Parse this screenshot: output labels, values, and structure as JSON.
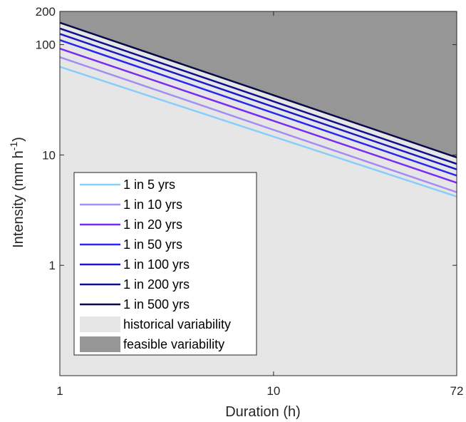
{
  "chart_data": {
    "type": "line",
    "xlabel": "Duration (h)",
    "ylabel_main": "Intensity (mm h",
    "ylabel_sup": "-1",
    "ylabel_close": ")",
    "x_scale": "log",
    "y_scale": "log",
    "xlim": [
      1,
      72
    ],
    "ylim": [
      0.1,
      200
    ],
    "x_ticks": [
      1,
      10,
      72
    ],
    "x_tick_labels": [
      "1",
      "10",
      "72"
    ],
    "y_ticks": [
      1,
      10,
      100,
      200
    ],
    "y_tick_labels": [
      "1",
      "10",
      "100",
      "200"
    ],
    "grid": false,
    "legend_position": "bottom-left",
    "series": [
      {
        "name": "1 in 5 yrs",
        "color": "#87cefa",
        "x": [
          1,
          72
        ],
        "y": [
          63,
          4.2
        ]
      },
      {
        "name": "1 in 10 yrs",
        "color": "#a58cf5",
        "x": [
          1,
          72
        ],
        "y": [
          77,
          4.6
        ]
      },
      {
        "name": "1 in 20 yrs",
        "color": "#7a2df2",
        "x": [
          1,
          72
        ],
        "y": [
          92,
          5.6
        ]
      },
      {
        "name": "1 in 50 yrs",
        "color": "#2a27f0",
        "x": [
          1,
          72
        ],
        "y": [
          110,
          6.5
        ]
      },
      {
        "name": "1 in 100 yrs",
        "color": "#1a1ac8",
        "x": [
          1,
          72
        ],
        "y": [
          125,
          7.4
        ]
      },
      {
        "name": "1 in 200 yrs",
        "color": "#10108c",
        "x": [
          1,
          72
        ],
        "y": [
          140,
          8.3
        ]
      },
      {
        "name": "1 in 500 yrs",
        "color": "#0a0a4a",
        "x": [
          1,
          72
        ],
        "y": [
          158,
          9.5
        ]
      }
    ],
    "areas": [
      {
        "name": "historical variability",
        "color": "#e6e6e6"
      },
      {
        "name": "feasible variability",
        "color": "#969696",
        "lower_edge": {
          "x": [
            1,
            72
          ],
          "y": [
            158,
            9.5
          ]
        }
      }
    ]
  }
}
